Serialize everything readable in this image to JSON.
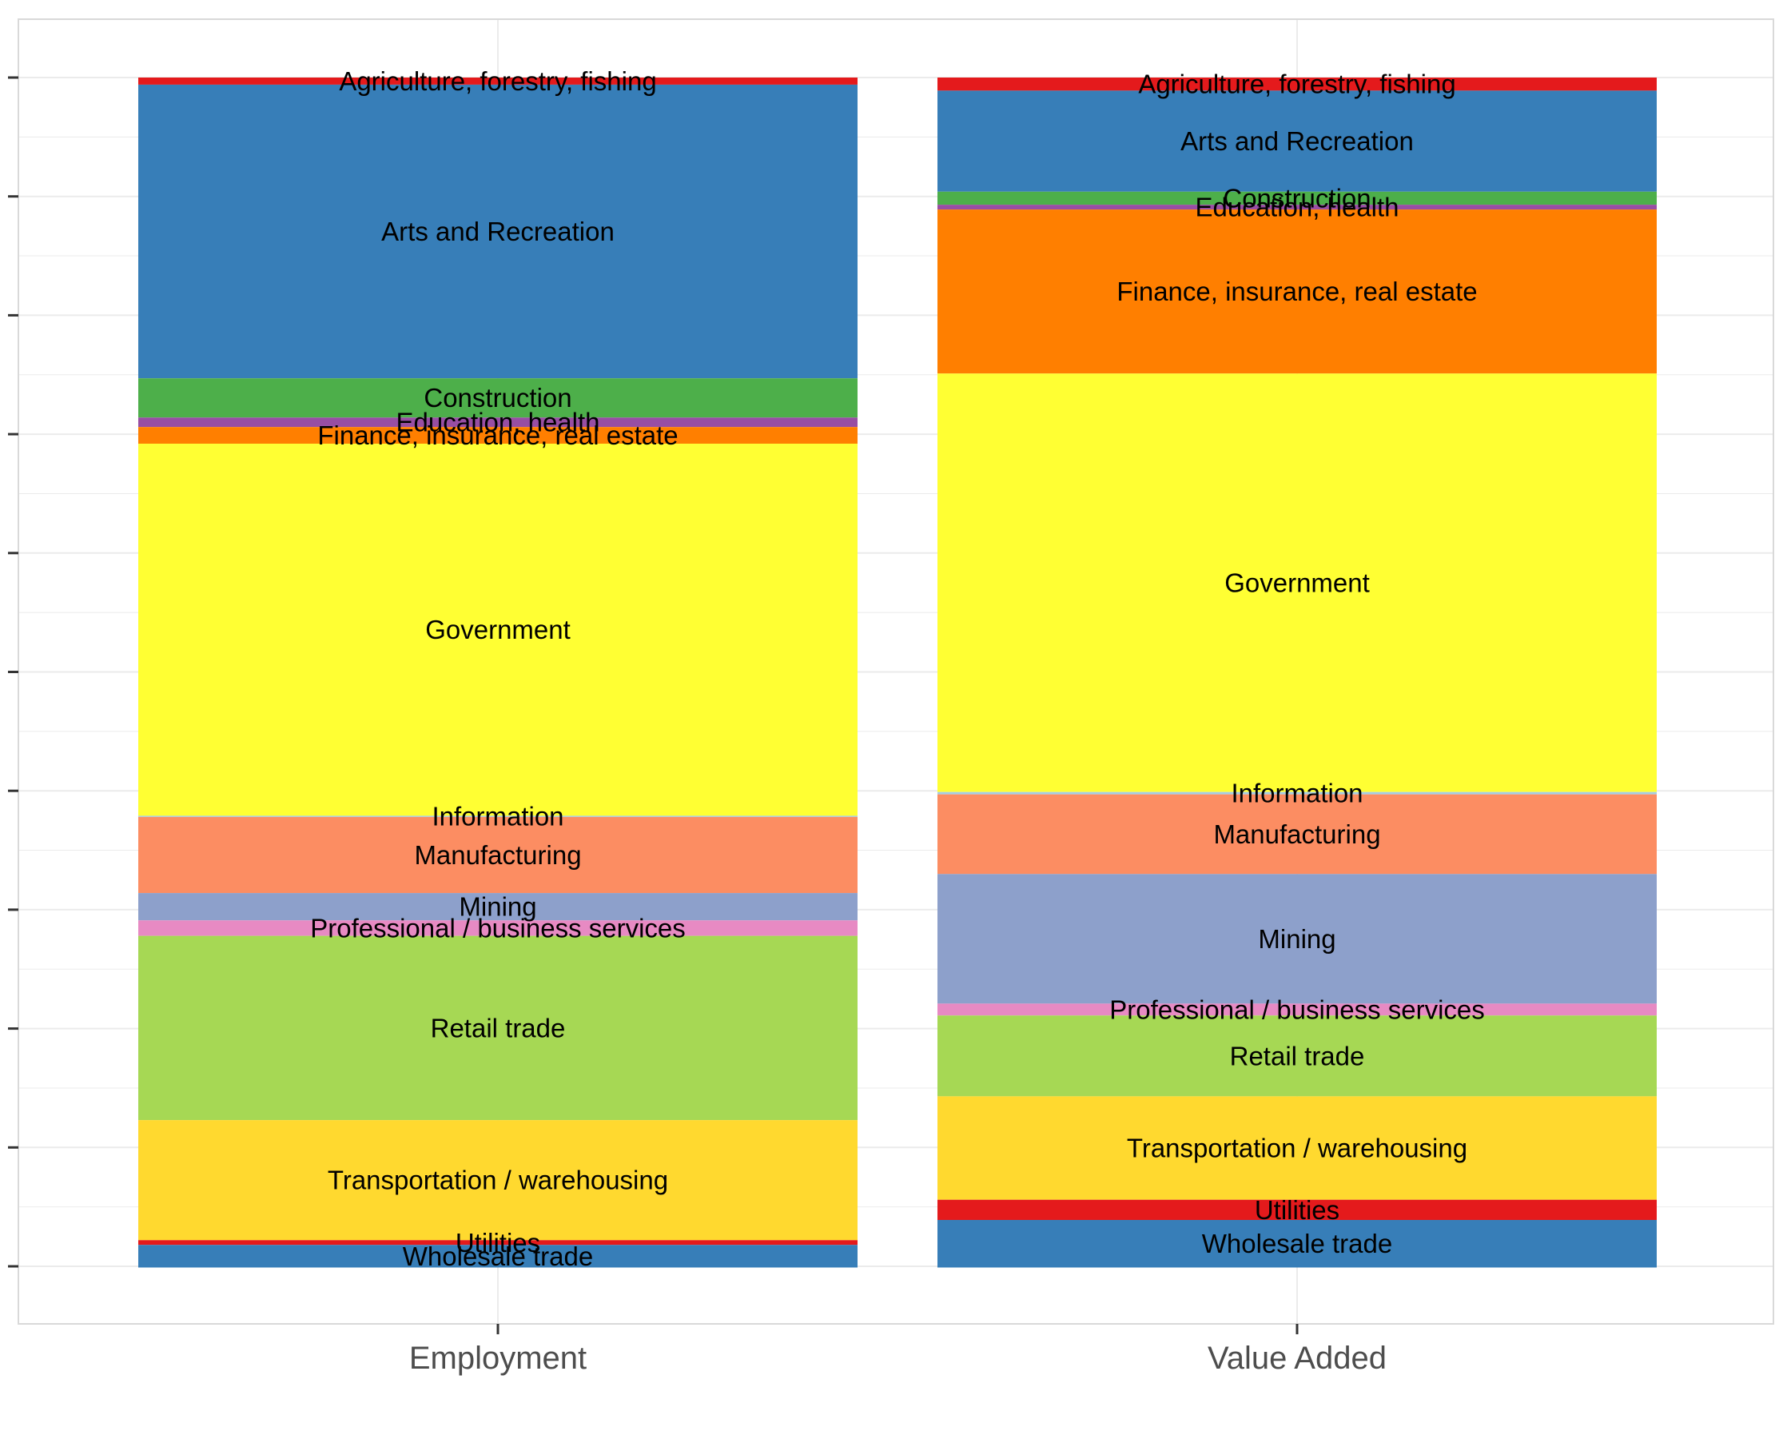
{
  "chart_data": {
    "type": "bar",
    "stacked": true,
    "normalized": true,
    "title": "",
    "xlabel": "",
    "ylabel": "",
    "ylim": [
      0,
      1
    ],
    "y_tick_count": 11,
    "y_tick_labels_shown": false,
    "grid": true,
    "categories": [
      "Employment",
      "Value Added"
    ],
    "series": [
      {
        "name": "Agriculture, forestry, fishing",
        "color": "#e41a1c",
        "values": [
          0.006,
          0.011
        ]
      },
      {
        "name": "Arts and Recreation",
        "color": "#377eb8",
        "values": [
          0.247,
          0.085
        ]
      },
      {
        "name": "Construction",
        "color": "#4daf4a",
        "values": [
          0.033,
          0.011
        ]
      },
      {
        "name": "Education, health",
        "color": "#984ea3",
        "values": [
          0.008,
          0.004
        ]
      },
      {
        "name": "Finance, insurance, real estate",
        "color": "#ff7f00",
        "values": [
          0.014,
          0.138
        ]
      },
      {
        "name": "Government",
        "color": "#ffff33",
        "values": [
          0.313,
          0.352
        ]
      },
      {
        "name": "Information",
        "color": "#a6cee3",
        "values": [
          0.001,
          0.002
        ]
      },
      {
        "name": "Manufacturing",
        "color": "#fc8d62",
        "values": [
          0.064,
          0.067
        ]
      },
      {
        "name": "Mining",
        "color": "#8da0cb",
        "values": [
          0.023,
          0.109
        ]
      },
      {
        "name": "Professional / business services",
        "color": "#e78ac3",
        "values": [
          0.013,
          0.01
        ]
      },
      {
        "name": "Retail trade",
        "color": "#a6d854",
        "values": [
          0.155,
          0.068
        ]
      },
      {
        "name": "Transportation / warehousing",
        "color": "#ffd92f",
        "values": [
          0.101,
          0.087
        ]
      },
      {
        "name": "Utilities",
        "color": "#e41a1c",
        "values": [
          0.004,
          0.017
        ]
      },
      {
        "name": "Wholesale trade",
        "color": "#377eb8",
        "values": [
          0.019,
          0.04
        ]
      }
    ]
  },
  "colors": {
    "panel_border": "#d9d9d9",
    "gridline": "#ebebeb",
    "tick": "#333333",
    "category_text": "#4d4d4d",
    "segment_text": "#000000"
  }
}
